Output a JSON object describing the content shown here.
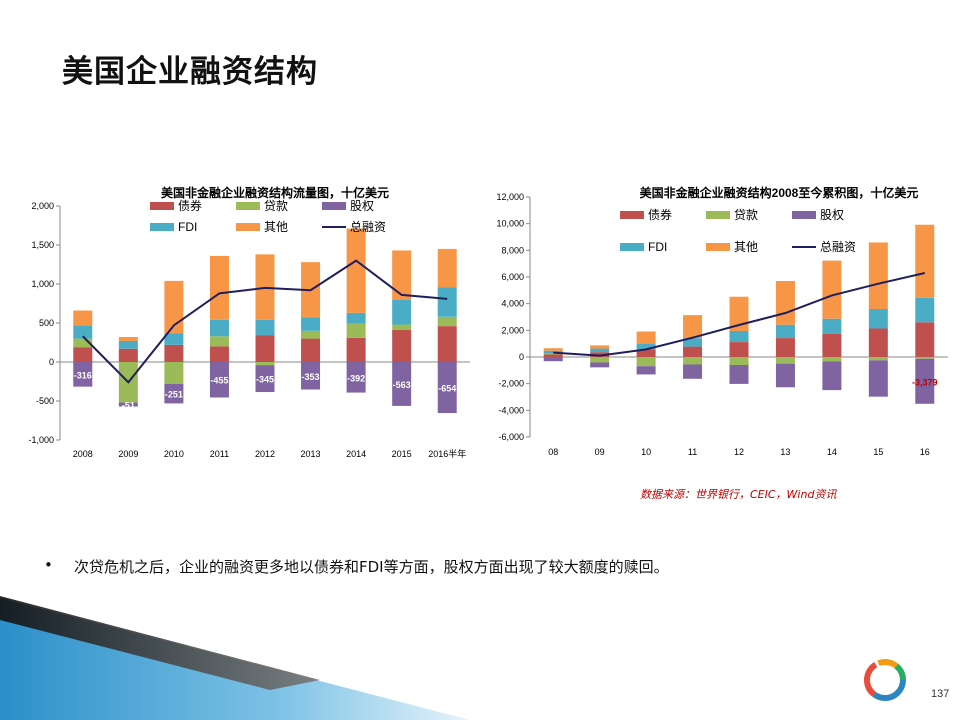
{
  "page": {
    "title": "美国企业融资结构",
    "bullet": "•",
    "bullet_text": "次贷危机之后，企业的融资更多地以债券和FDI等方面，股权方面出现了较大额度的赎回。",
    "source": "数据来源：世界银行，CEIC，Wind资讯",
    "page_number": "137"
  },
  "colors": {
    "bond": "#c0504d",
    "loan": "#9bbb59",
    "equity": "#8064a2",
    "fdi": "#4bacc6",
    "other": "#f79646",
    "total": "#1f1f5f",
    "label_red": "#c00000"
  },
  "legend": {
    "bond": "债券",
    "loan": "贷款",
    "equity": "股权",
    "fdi": "FDI",
    "other": "其他",
    "total": "总融资"
  },
  "chart_data": [
    {
      "type": "bar",
      "stacked": true,
      "title": "美国非金融企业融资结构流量图，十亿美元",
      "categories": [
        "2008",
        "2009",
        "2010",
        "2011",
        "2012",
        "2013",
        "2014",
        "2015",
        "2016半年"
      ],
      "yticks": [
        "2,000",
        "1,500",
        "1,000",
        "500",
        "0",
        "-500",
        "-1,000"
      ],
      "ylim": [
        -1000,
        2000
      ],
      "series": [
        {
          "name": "债券",
          "values": [
            190,
            170,
            220,
            200,
            340,
            300,
            310,
            410,
            460
          ]
        },
        {
          "name": "贷款",
          "values": [
            110,
            -520,
            -280,
            130,
            -40,
            100,
            180,
            70,
            120
          ]
        },
        {
          "name": "股权",
          "values": [
            -316,
            -51,
            -251,
            -455,
            -345,
            -353,
            -392,
            -563,
            -654
          ]
        },
        {
          "name": "FDI",
          "values": [
            170,
            100,
            150,
            210,
            200,
            170,
            140,
            320,
            380
          ]
        },
        {
          "name": "其他",
          "values": [
            190,
            50,
            670,
            820,
            840,
            710,
            1080,
            630,
            490
          ]
        },
        {
          "name": "总融资",
          "type": "line",
          "values": [
            330,
            -260,
            470,
            880,
            950,
            920,
            1300,
            860,
            810
          ]
        }
      ],
      "data_labels": [
        "-316",
        "-51",
        "-251",
        "-455",
        "-345",
        "-353",
        "-392",
        "-563",
        "-654"
      ],
      "legend": "top-right",
      "grid": false
    },
    {
      "type": "bar",
      "stacked": true,
      "title": "美国非金融企业融资结构2008至今累积图，十亿美元",
      "categories": [
        "08",
        "09",
        "10",
        "11",
        "12",
        "13",
        "14",
        "15",
        "16"
      ],
      "yticks": [
        "12,000",
        "10,000",
        "8,000",
        "6,000",
        "4,000",
        "2,000",
        "0",
        "-2,000",
        "-4,000",
        "-6,000"
      ],
      "ylim": [
        -6000,
        12000
      ],
      "series": [
        {
          "name": "债券",
          "values": [
            190,
            360,
            580,
            780,
            1120,
            1420,
            1730,
            2140,
            2600
          ]
        },
        {
          "name": "贷款",
          "values": [
            110,
            -410,
            -690,
            -560,
            -600,
            -500,
            -320,
            -250,
            -130
          ]
        },
        {
          "name": "股权",
          "values": [
            -316,
            -367,
            -618,
            -1073,
            -1418,
            -1771,
            -2163,
            -2726,
            -3379
          ]
        },
        {
          "name": "FDI",
          "values": [
            170,
            270,
            420,
            630,
            830,
            1000,
            1140,
            1460,
            1840
          ]
        },
        {
          "name": "其他",
          "values": [
            190,
            240,
            910,
            1730,
            2570,
            3280,
            4360,
            4990,
            5480
          ]
        },
        {
          "name": "总融资",
          "type": "line",
          "values": [
            330,
            100,
            570,
            1450,
            2400,
            3300,
            4620,
            5500,
            6300
          ]
        }
      ],
      "data_labels": [
        "-3,379"
      ],
      "legend": "top-right",
      "grid": false
    }
  ]
}
